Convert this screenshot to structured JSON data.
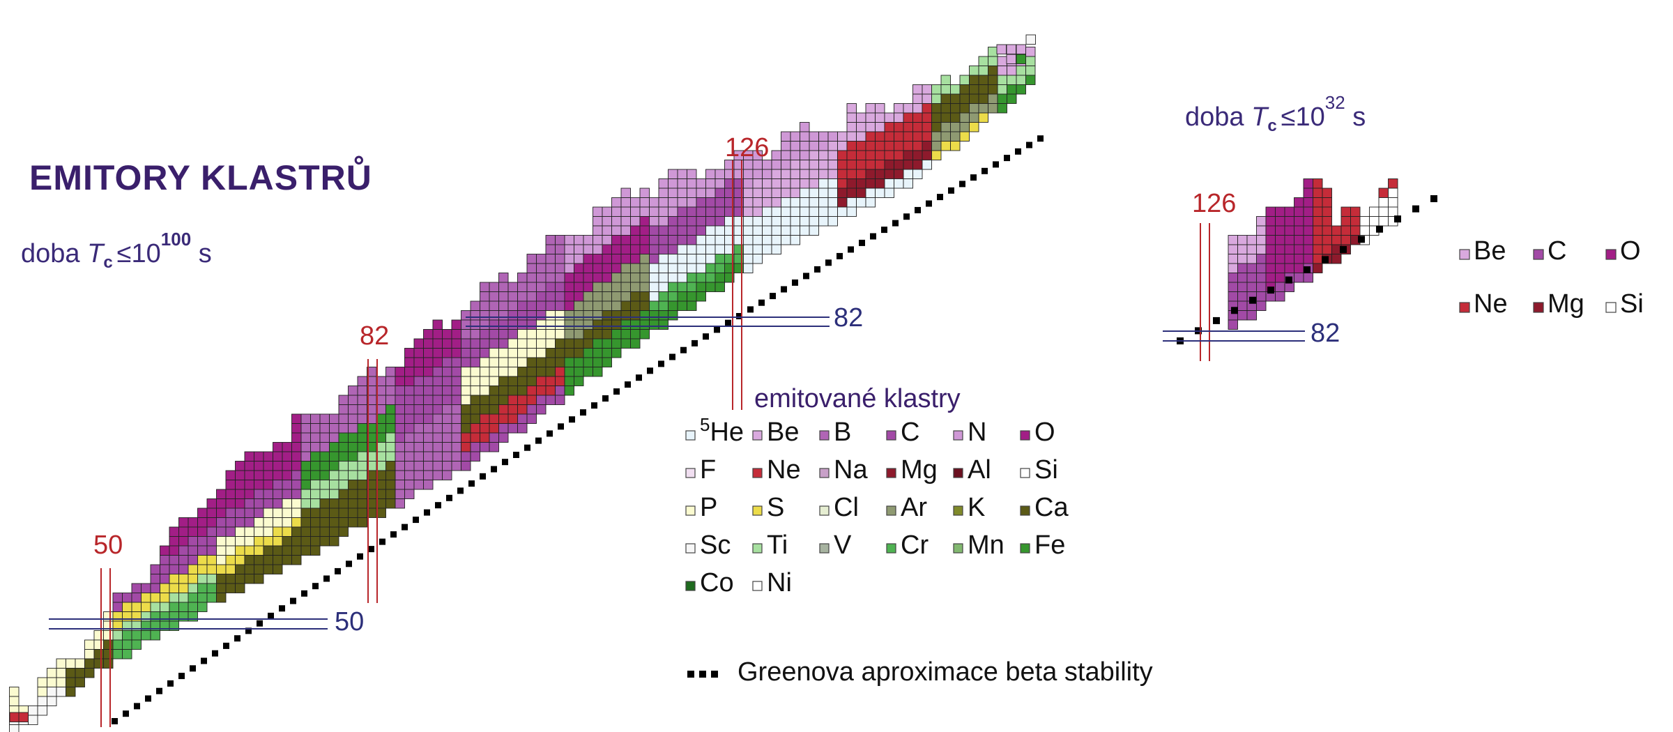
{
  "title": "EMITORY KLASTRŮ",
  "main_panel": {
    "time_label": {
      "prefix": "doba ",
      "symbol": "T",
      "subscript": "c",
      "relation": "≤10",
      "exponent": "100",
      "unit": " s"
    },
    "magic_labels": {
      "proton_50": "50",
      "proton_82": "82",
      "proton_126": "126",
      "neutron_50": "50",
      "neutron_82": "82"
    }
  },
  "inset_panel": {
    "time_label": {
      "prefix": "doba ",
      "symbol": "T",
      "subscript": "c",
      "relation": "≤10",
      "exponent": "32",
      "unit": " s"
    },
    "magic_labels": {
      "proton_126": "126",
      "neutron_82": "82"
    },
    "legend": [
      {
        "key": "Be",
        "label": "Be",
        "color": "#d9a9de"
      },
      {
        "key": "C",
        "label": "C",
        "color": "#a24aa6"
      },
      {
        "key": "O",
        "label": "O",
        "color": "#a21e86"
      },
      {
        "key": "Ne",
        "label": "Ne",
        "color": "#c52c39"
      },
      {
        "key": "Mg",
        "label": "Mg",
        "color": "#8e1a2c"
      },
      {
        "key": "Si",
        "label": "Si",
        "color": "#ffffff"
      }
    ]
  },
  "legend": {
    "heading": "emitované klastry",
    "items": [
      {
        "key": "He",
        "label": "He",
        "mass_number": "5",
        "color": "#e8f4fb"
      },
      {
        "key": "Be",
        "label": "Be",
        "color": "#d9a9de"
      },
      {
        "key": "B",
        "label": "B",
        "color": "#b065b5"
      },
      {
        "key": "C",
        "label": "C",
        "color": "#a24aa6"
      },
      {
        "key": "N",
        "label": "N",
        "color": "#cf98d6"
      },
      {
        "key": "O",
        "label": "O",
        "color": "#a21e86"
      },
      {
        "key": "F",
        "label": "F",
        "color": "#f1dff1"
      },
      {
        "key": "Ne",
        "label": "Ne",
        "color": "#c52c39"
      },
      {
        "key": "Na",
        "label": "Na",
        "color": "#c8a0c8"
      },
      {
        "key": "Mg",
        "label": "Mg",
        "color": "#8e1a2c"
      },
      {
        "key": "Al",
        "label": "Al",
        "color": "#6b1020"
      },
      {
        "key": "Si",
        "label": "Si",
        "color": "#ffffff"
      },
      {
        "key": "P",
        "label": "P",
        "color": "#fbfbd0"
      },
      {
        "key": "S",
        "label": "S",
        "color": "#ecdc4a"
      },
      {
        "key": "Cl",
        "label": "Cl",
        "color": "#e6eed2"
      },
      {
        "key": "Ar",
        "label": "Ar",
        "color": "#8f9a72"
      },
      {
        "key": "K",
        "label": "K",
        "color": "#808a2a"
      },
      {
        "key": "Ca",
        "label": "Ca",
        "color": "#5b5a16"
      },
      {
        "key": "Sc",
        "label": "Sc",
        "color": "#f7f7f7"
      },
      {
        "key": "Ti",
        "label": "Ti",
        "color": "#a7e0a0"
      },
      {
        "key": "V",
        "label": "V",
        "color": "#a7b3a0"
      },
      {
        "key": "Cr",
        "label": "Cr",
        "color": "#4fb352"
      },
      {
        "key": "Mn",
        "label": "Mn",
        "color": "#82b870"
      },
      {
        "key": "Fe",
        "label": "Fe",
        "color": "#36962e"
      },
      {
        "key": "Co",
        "label": "Co",
        "color": "#1e6a1e"
      },
      {
        "key": "Ni",
        "label": "Ni",
        "color": "#ffffff"
      }
    ],
    "stability_label": "Greenova aproximace beta stability"
  },
  "colors": {
    "title": "#3a1f6b",
    "magic_proton": "#b8262a",
    "magic_neutron": "#2c2f7a",
    "grid": "#222222",
    "stability": "#000000"
  }
}
